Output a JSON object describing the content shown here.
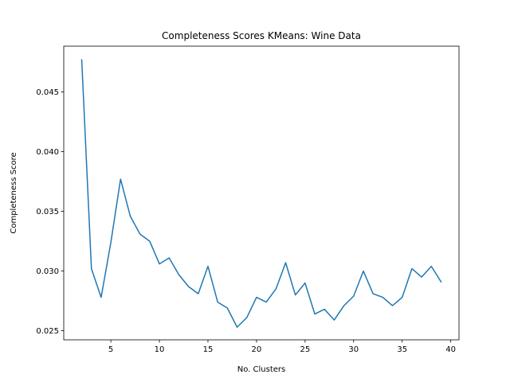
{
  "chart_data": {
    "type": "line",
    "title": "Completeness Scores KMeans: Wine Data",
    "xlabel": "No. Clusters",
    "ylabel": "Completeness Score",
    "xlim": [
      0.15,
      40.85
    ],
    "ylim": [
      0.02424,
      0.04884
    ],
    "xticks": [
      5,
      10,
      15,
      20,
      25,
      30,
      35,
      40
    ],
    "xtick_labels": [
      "5",
      "10",
      "15",
      "20",
      "25",
      "30",
      "35",
      "40"
    ],
    "yticks": [
      0.025,
      0.03,
      0.035,
      0.04,
      0.045
    ],
    "ytick_labels": [
      "0.025",
      "0.030",
      "0.035",
      "0.040",
      "0.045"
    ],
    "grid": false,
    "line_color": "#1f77b4",
    "series": [
      {
        "x": [
          2,
          3,
          4,
          5,
          6,
          7,
          8,
          9,
          10,
          11,
          12,
          13,
          14,
          15,
          16,
          17,
          18,
          19,
          20,
          21,
          22,
          23,
          24,
          25,
          26,
          27,
          28,
          29,
          30,
          31,
          32,
          33,
          34,
          35,
          36,
          37,
          38,
          39
        ],
        "y": [
          0.0477,
          0.0302,
          0.0278,
          0.0324,
          0.0377,
          0.0346,
          0.0331,
          0.0325,
          0.0306,
          0.0311,
          0.0297,
          0.0287,
          0.0281,
          0.0304,
          0.0274,
          0.0269,
          0.0253,
          0.0261,
          0.0278,
          0.0274,
          0.0285,
          0.0307,
          0.028,
          0.029,
          0.0264,
          0.0268,
          0.0259,
          0.0271,
          0.0279,
          0.03,
          0.0281,
          0.0278,
          0.0271,
          0.0278,
          0.0302,
          0.0295,
          0.0304,
          0.0291
        ]
      }
    ]
  }
}
